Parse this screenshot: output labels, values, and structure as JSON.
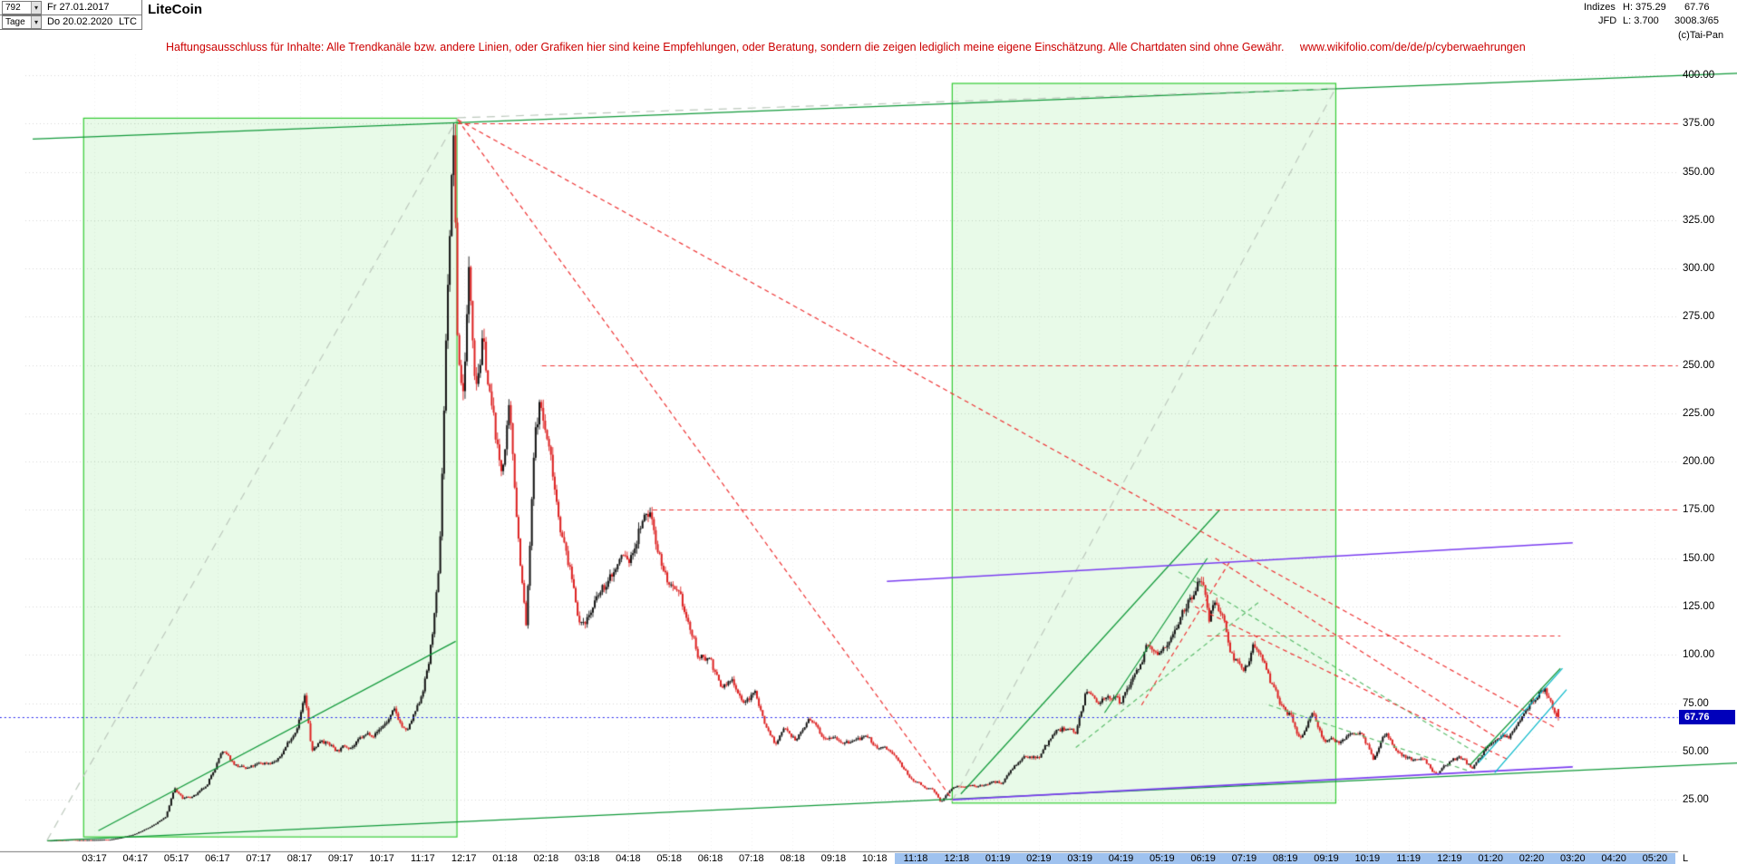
{
  "window": {
    "bars_count": "792",
    "date_from": "Fr 27.01.2017",
    "period": "Tage",
    "date_to": "Do 20.02.2020",
    "symbol": "LTC",
    "title": "LiteCoin",
    "right": {
      "group": "Indizes",
      "high_label": "H: 375.29",
      "broker": "JFD",
      "low_label": "L: 3.700",
      "last_top": "67.76",
      "bar_info": "3008.3/65",
      "copyright": "(c)Tai-Pan"
    }
  },
  "disclaimer": {
    "text": "Haftungsausschluss für Inhalte: Alle Trendkanäle bzw. andere Linien, oder Grafiken hier sind keine Empfehlungen, oder Beratung, sondern die zeigen lediglich meine eigene Einschätzung. Alle Chartdaten sind ohne Gewähr.",
    "url": "www.wikifolio.com/de/de/p/cyberwaehrungen"
  },
  "chart_data": {
    "type": "candlestick",
    "title": "LiteCoin",
    "symbol": "LTC",
    "bars": 792,
    "date_from": "Fr 27.01.2017",
    "date_to": "Do 20.02.2020",
    "high": 375.29,
    "low": 3.7,
    "last": 67.76,
    "last_label": "67.76",
    "ylim": [
      0,
      410
    ],
    "y_ticks": [
      400,
      375,
      350,
      325,
      300,
      275,
      250,
      225,
      200,
      175,
      150,
      125,
      100,
      75,
      50,
      25
    ],
    "x_ticks": [
      "03:17",
      "04:17",
      "05:17",
      "06:17",
      "07:17",
      "08:17",
      "09:17",
      "10:17",
      "11:17",
      "12:17",
      "01:18",
      "02:18",
      "03:18",
      "04:18",
      "05:18",
      "06:18",
      "07:18",
      "08:18",
      "09:18",
      "10:18",
      "11:18",
      "12:18",
      "01:19",
      "02:19",
      "03:19",
      "04:19",
      "05:19",
      "06:19",
      "07:19",
      "08:19",
      "09:19",
      "10:19",
      "11:19",
      "12:19",
      "01:20",
      "02:20",
      "03:20",
      "04:20",
      "05:20"
    ],
    "x_axis_end_label": "L",
    "x_highlight_from_index": 20,
    "keypoints_months_price": [
      [
        -1.1,
        3.9
      ],
      [
        -0.6,
        4.2
      ],
      [
        -0.1,
        4.0
      ],
      [
        0.4,
        4.4
      ],
      [
        0.9,
        6.5
      ],
      [
        1.4,
        11
      ],
      [
        1.75,
        16
      ],
      [
        1.95,
        31
      ],
      [
        2.15,
        25
      ],
      [
        2.45,
        27
      ],
      [
        2.75,
        31
      ],
      [
        3.1,
        50
      ],
      [
        3.35,
        44
      ],
      [
        3.7,
        40
      ],
      [
        4.1,
        43
      ],
      [
        4.5,
        46
      ],
      [
        4.9,
        62
      ],
      [
        5.13,
        79
      ],
      [
        5.3,
        49
      ],
      [
        5.55,
        57
      ],
      [
        5.9,
        51
      ],
      [
        6.4,
        55
      ],
      [
        6.9,
        61
      ],
      [
        7.3,
        70
      ],
      [
        7.6,
        59
      ],
      [
        7.9,
        72
      ],
      [
        8.15,
        96
      ],
      [
        8.4,
        140
      ],
      [
        8.62,
        300
      ],
      [
        8.75,
        371
      ],
      [
        8.85,
        255
      ],
      [
        8.98,
        235
      ],
      [
        9.12,
        298
      ],
      [
        9.28,
        248
      ],
      [
        9.45,
        268
      ],
      [
        9.65,
        232
      ],
      [
        9.9,
        192
      ],
      [
        10.1,
        222
      ],
      [
        10.3,
        168
      ],
      [
        10.52,
        114
      ],
      [
        10.72,
        205
      ],
      [
        10.85,
        228
      ],
      [
        11.05,
        207
      ],
      [
        11.45,
        158
      ],
      [
        11.85,
        116
      ],
      [
        12.15,
        125
      ],
      [
        12.5,
        135
      ],
      [
        12.85,
        150
      ],
      [
        13.05,
        147
      ],
      [
        13.3,
        168
      ],
      [
        13.55,
        172
      ],
      [
        13.85,
        147
      ],
      [
        14.1,
        130
      ],
      [
        14.4,
        117
      ],
      [
        14.75,
        96
      ],
      [
        15.0,
        99
      ],
      [
        15.25,
        82
      ],
      [
        15.55,
        86
      ],
      [
        15.85,
        76
      ],
      [
        16.1,
        80
      ],
      [
        16.35,
        64
      ],
      [
        16.6,
        54
      ],
      [
        16.85,
        63
      ],
      [
        17.1,
        57
      ],
      [
        17.4,
        66
      ],
      [
        17.7,
        58
      ],
      [
        18.0,
        61
      ],
      [
        18.35,
        55
      ],
      [
        18.7,
        57
      ],
      [
        19.0,
        52
      ],
      [
        19.35,
        50
      ],
      [
        19.6,
        44
      ],
      [
        19.85,
        36
      ],
      [
        20.1,
        33
      ],
      [
        20.4,
        30
      ],
      [
        20.62,
        24
      ],
      [
        20.9,
        31
      ],
      [
        21.2,
        33
      ],
      [
        21.5,
        31
      ],
      [
        21.8,
        34
      ],
      [
        22.1,
        34
      ],
      [
        22.4,
        44
      ],
      [
        22.7,
        46
      ],
      [
        23.0,
        48
      ],
      [
        23.3,
        57
      ],
      [
        23.6,
        61
      ],
      [
        23.9,
        60
      ],
      [
        24.13,
        81
      ],
      [
        24.4,
        76
      ],
      [
        24.7,
        81
      ],
      [
        25.0,
        73
      ],
      [
        25.3,
        88
      ],
      [
        25.6,
        104
      ],
      [
        25.9,
        95
      ],
      [
        26.2,
        112
      ],
      [
        26.5,
        128
      ],
      [
        26.8,
        138
      ],
      [
        27.0,
        144
      ],
      [
        27.15,
        125
      ],
      [
        27.32,
        136
      ],
      [
        27.5,
        119
      ],
      [
        27.75,
        100
      ],
      [
        28.0,
        95
      ],
      [
        28.25,
        105
      ],
      [
        28.55,
        88
      ],
      [
        28.85,
        74
      ],
      [
        29.1,
        70
      ],
      [
        29.35,
        56
      ],
      [
        29.65,
        72
      ],
      [
        29.95,
        56
      ],
      [
        30.25,
        54
      ],
      [
        30.55,
        58
      ],
      [
        30.85,
        61
      ],
      [
        31.15,
        47
      ],
      [
        31.45,
        60
      ],
      [
        31.75,
        49
      ],
      [
        32.05,
        46
      ],
      [
        32.35,
        44
      ],
      [
        32.65,
        39
      ],
      [
        32.95,
        43
      ],
      [
        33.25,
        46
      ],
      [
        33.55,
        41
      ],
      [
        33.85,
        50
      ],
      [
        34.15,
        59
      ],
      [
        34.45,
        56
      ],
      [
        34.75,
        67
      ],
      [
        35.05,
        75
      ],
      [
        35.3,
        83
      ],
      [
        35.48,
        74
      ],
      [
        35.65,
        67.76
      ]
    ],
    "annotations": {
      "boxes": [
        {
          "name": "green-box-2017-cycle",
          "m1": -0.27,
          "p1": 378,
          "m2": 8.82,
          "p2": 6
        },
        {
          "name": "green-box-2019-cycle",
          "m1": 20.88,
          "p1": 396,
          "m2": 30.22,
          "p2": 23.5
        }
      ],
      "lines": [
        {
          "name": "upper-green-channel",
          "m1": -1.5,
          "p1": 367,
          "m2": 40,
          "p2": 401,
          "color": "trend_green",
          "style": "solid"
        },
        {
          "name": "rally-2017-support",
          "m1": 0.1,
          "p1": 9,
          "m2": 8.8,
          "p2": 107,
          "color": "trend_green",
          "style": "solid"
        },
        {
          "name": "lower-green-channel",
          "m1": -1.15,
          "p1": 3.8,
          "m2": 40,
          "p2": 44,
          "color": "trend_green",
          "style": "solid"
        },
        {
          "name": "rally-2019-support",
          "m1": 21.1,
          "p1": 28,
          "m2": 27.4,
          "p2": 175,
          "color": "trend_green",
          "style": "solid"
        },
        {
          "name": "rally-2019-inner-trendline",
          "m1": 24.6,
          "p1": 70,
          "m2": 27.1,
          "p2": 150,
          "color": "trend_green",
          "style": "solid"
        },
        {
          "name": "recovery-2020-trendline",
          "m1": 33.5,
          "p1": 43,
          "m2": 35.7,
          "p2": 93,
          "color": "trend_green",
          "style": "solid"
        },
        {
          "name": "wedge-2019-upper",
          "m1": 26.4,
          "p1": 143,
          "m2": 33.9,
          "p2": 46,
          "color": "trend_green_dashed",
          "style": "dashed"
        },
        {
          "name": "wedge-2019-rising",
          "m1": 23.9,
          "p1": 52,
          "m2": 28.4,
          "p2": 128,
          "color": "trend_green_dashed",
          "style": "dashed"
        },
        {
          "name": "wedge-2019-lower",
          "m1": 28.6,
          "p1": 74,
          "m2": 33.6,
          "p2": 39,
          "color": "trend_green_dashed",
          "style": "dashed"
        },
        {
          "name": "rally-2017-projection",
          "m1": -1.15,
          "p1": 4,
          "m2": 8.85,
          "p2": 378,
          "color": "gray_dashed",
          "style": "long-dash"
        },
        {
          "name": "rally-2019-projection",
          "m1": 20.88,
          "p1": 24,
          "m2": 30.22,
          "p2": 393,
          "color": "gray_dashed",
          "style": "long-dash"
        },
        {
          "name": "peak-connector",
          "m1": 8.85,
          "p1": 378,
          "m2": 30.22,
          "p2": 393,
          "color": "gray_dashed",
          "style": "long-dash"
        },
        {
          "name": "resistance-375",
          "m1": 8.85,
          "p1": 375,
          "m2": 38.56,
          "p2": 375,
          "color": "resistance_red",
          "style": "dashed"
        },
        {
          "name": "resistance-250",
          "m1": 10.9,
          "p1": 250,
          "m2": 38.56,
          "p2": 250,
          "color": "resistance_red",
          "style": "dashed"
        },
        {
          "name": "resistance-175",
          "m1": 13.6,
          "p1": 175,
          "m2": 38.56,
          "p2": 175,
          "color": "resistance_red",
          "style": "dashed"
        },
        {
          "name": "resistance-110",
          "m1": 27.1,
          "p1": 110,
          "m2": 35.7,
          "p2": 110,
          "color": "resistance_red",
          "style": "dashed"
        },
        {
          "name": "downtrend-from-peak-steep",
          "m1": 8.85,
          "p1": 377,
          "m2": 20.9,
          "p2": 25,
          "color": "resistance_red",
          "style": "dashed"
        },
        {
          "name": "downtrend-from-peak-long",
          "m1": 8.85,
          "p1": 377,
          "m2": 35.6,
          "p2": 62,
          "color": "resistance_red",
          "style": "dashed"
        },
        {
          "name": "wedge-2019-red-rising",
          "m1": 25.5,
          "p1": 74,
          "m2": 27.7,
          "p2": 150,
          "color": "resistance_red",
          "style": "dashed"
        },
        {
          "name": "downtrend-2019-upper",
          "m1": 27.3,
          "p1": 150,
          "m2": 34.3,
          "p2": 55,
          "color": "resistance_red",
          "style": "dashed"
        },
        {
          "name": "downtrend-2019-lower",
          "m1": 26.8,
          "p1": 125,
          "m2": 34.4,
          "p2": 46,
          "color": "resistance_red",
          "style": "dashed"
        },
        {
          "name": "purple-resistance",
          "m1": 19.3,
          "p1": 138,
          "m2": 36.0,
          "p2": 158,
          "color": "purple",
          "style": "solid",
          "w": 1.6
        },
        {
          "name": "purple-support",
          "m1": 20.9,
          "p1": 25,
          "m2": 36.0,
          "p2": 42,
          "color": "purple",
          "style": "solid",
          "w": 1.6
        },
        {
          "name": "cyan-channel-upper",
          "m1": 33.7,
          "p1": 44,
          "m2": 35.75,
          "p2": 93,
          "color": "cyan",
          "style": "solid"
        },
        {
          "name": "cyan-channel-lower",
          "m1": 34.1,
          "p1": 39,
          "m2": 35.85,
          "p2": 82,
          "color": "cyan",
          "style": "solid"
        },
        {
          "name": "last-price-level",
          "m1": -2.3,
          "p1": 67.76,
          "m2": 38.56,
          "p2": 67.76,
          "color": "last_price_line",
          "style": "dotted",
          "w": 1.2
        }
      ]
    },
    "colors": {
      "up_candle": "#141414",
      "down_candle": "#dd2222",
      "box_border": "#33cc33",
      "box_fill": "rgba(0,200,0,0.09)",
      "trend_green": "#109939",
      "trend_green_dashed": "#5fbe6e",
      "gray_dashed": "#bcc8bc",
      "resistance_red": "#ee3333",
      "purple": "#7a3df0",
      "cyan": "#00b6c8",
      "last_price_line": "#2525ee",
      "last_price_bg": "#0000bb",
      "tick_highlight": "#9fc2ef",
      "grid": "#d6d6d6"
    }
  }
}
